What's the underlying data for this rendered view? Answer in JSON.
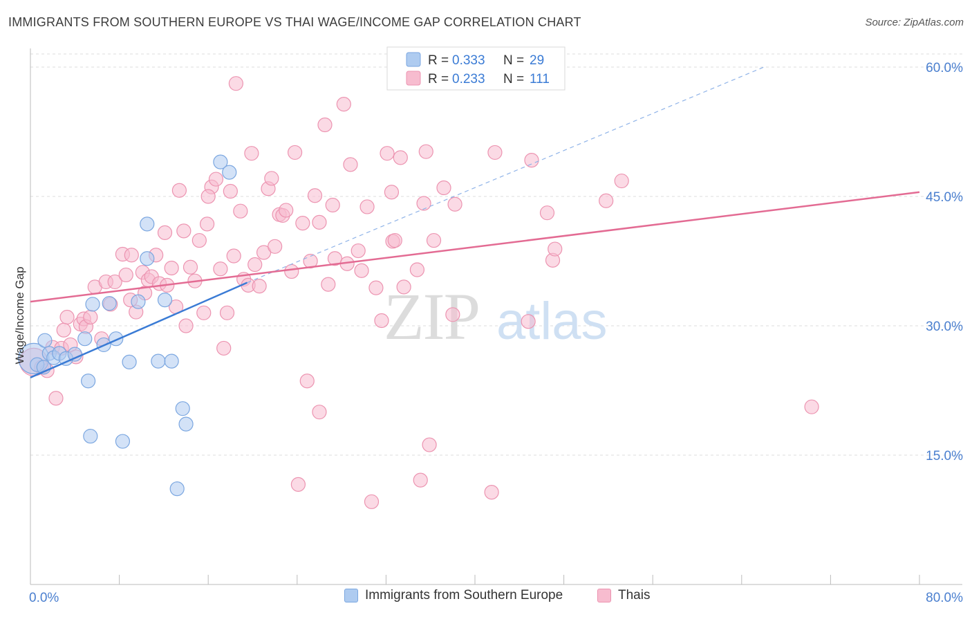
{
  "title": "IMMIGRANTS FROM SOUTHERN EUROPE VS THAI WAGE/INCOME GAP CORRELATION CHART",
  "source": "Source: ZipAtlas.com",
  "watermark": {
    "zip": "ZIP",
    "atlas": "atlas"
  },
  "colors": {
    "blue_fill": "#aecbf0",
    "blue_stroke": "#7aa6e0",
    "blue_line": "#3a7bd5",
    "pink_fill": "#f7bccf",
    "pink_stroke": "#ec93b0",
    "pink_line": "#e36b93",
    "axis_text": "#4a7fcf",
    "grid": "#dddddd"
  },
  "legend_top": [
    {
      "r_label": "R =",
      "r_value": "0.333",
      "n_label": "N =",
      "n_value": "29"
    },
    {
      "r_label": "R =",
      "r_value": "0.233",
      "n_label": "N =",
      "n_value": "111"
    }
  ],
  "chart_data": {
    "type": "scatter",
    "ylabel": "Wage/Income Gap",
    "xlim": [
      0,
      80
    ],
    "ylim": [
      0,
      62
    ],
    "x_tick_labels": [
      "0.0%",
      "80.0%"
    ],
    "y_ticks": [
      15,
      30,
      45,
      60
    ],
    "y_tick_labels": [
      "15.0%",
      "30.0%",
      "45.0%",
      "60.0%"
    ],
    "grid": true,
    "series": [
      {
        "name": "Immigrants from Southern Europe",
        "color": "#aecbf0",
        "trend": {
          "x0": 0,
          "y0": 24.0,
          "x1": 19.5,
          "y1": 35.0,
          "dash_to_x": 66,
          "dash_to_y": 60
        },
        "points": [
          [
            0.3,
            26.2,
            22
          ],
          [
            0.6,
            25.5,
            10
          ],
          [
            1.2,
            25.2,
            10
          ],
          [
            1.3,
            28.3,
            10
          ],
          [
            1.7,
            26.8,
            10
          ],
          [
            2.1,
            26.3,
            10
          ],
          [
            2.6,
            26.8,
            10
          ],
          [
            3.2,
            26.2,
            10
          ],
          [
            4.0,
            26.7,
            10
          ],
          [
            4.9,
            28.5,
            10
          ],
          [
            5.6,
            32.5,
            10
          ],
          [
            6.6,
            27.8,
            10
          ],
          [
            7.1,
            32.6,
            10
          ],
          [
            7.7,
            28.5,
            10
          ],
          [
            8.9,
            25.8,
            10
          ],
          [
            9.7,
            32.8,
            10
          ],
          [
            10.5,
            37.8,
            10
          ],
          [
            10.5,
            41.8,
            10
          ],
          [
            11.5,
            25.9,
            10
          ],
          [
            12.1,
            33.0,
            10
          ],
          [
            12.7,
            25.9,
            10
          ],
          [
            13.2,
            11.1,
            10
          ],
          [
            13.7,
            20.4,
            10
          ],
          [
            14.0,
            18.6,
            10
          ],
          [
            17.1,
            49.0,
            10
          ],
          [
            17.9,
            47.8,
            10
          ],
          [
            5.2,
            23.6,
            10
          ],
          [
            5.4,
            17.2,
            10
          ],
          [
            8.3,
            16.6,
            10
          ]
        ]
      },
      {
        "name": "Thais",
        "color": "#f7bccf",
        "trend": {
          "x0": 0,
          "y0": 32.8,
          "x1": 80,
          "y1": 45.5
        },
        "points": [
          [
            0.3,
            25.8,
            20
          ],
          [
            1.0,
            25.2,
            10
          ],
          [
            1.5,
            24.8,
            10
          ],
          [
            2.0,
            27.5,
            10
          ],
          [
            2.3,
            21.6,
            10
          ],
          [
            2.8,
            27.4,
            10
          ],
          [
            3.0,
            29.5,
            10
          ],
          [
            3.3,
            31.0,
            10
          ],
          [
            3.6,
            27.8,
            10
          ],
          [
            4.1,
            26.4,
            10
          ],
          [
            4.5,
            30.2,
            10
          ],
          [
            4.8,
            30.8,
            10
          ],
          [
            5.0,
            29.9,
            10
          ],
          [
            5.4,
            31.0,
            10
          ],
          [
            5.8,
            34.5,
            10
          ],
          [
            6.4,
            28.5,
            10
          ],
          [
            6.8,
            35.1,
            10
          ],
          [
            7.2,
            32.5,
            10
          ],
          [
            7.6,
            35.1,
            10
          ],
          [
            8.3,
            38.3,
            10
          ],
          [
            8.6,
            35.9,
            10
          ],
          [
            9.1,
            38.2,
            10
          ],
          [
            9.5,
            31.6,
            10
          ],
          [
            10.1,
            36.2,
            10
          ],
          [
            10.3,
            33.8,
            10
          ],
          [
            10.6,
            35.3,
            10
          ],
          [
            10.9,
            35.7,
            10
          ],
          [
            11.3,
            38.2,
            10
          ],
          [
            11.6,
            34.9,
            10
          ],
          [
            12.1,
            40.8,
            10
          ],
          [
            12.3,
            34.7,
            10
          ],
          [
            12.7,
            36.7,
            10
          ],
          [
            13.1,
            32.2,
            10
          ],
          [
            13.4,
            45.7,
            10
          ],
          [
            13.8,
            41.0,
            10
          ],
          [
            14.0,
            30.0,
            10
          ],
          [
            14.4,
            36.8,
            10
          ],
          [
            14.8,
            35.2,
            10
          ],
          [
            15.2,
            39.9,
            10
          ],
          [
            15.6,
            31.5,
            10
          ],
          [
            15.9,
            41.8,
            10
          ],
          [
            16.3,
            46.1,
            10
          ],
          [
            16.7,
            47.0,
            10
          ],
          [
            17.1,
            36.6,
            10
          ],
          [
            17.4,
            27.4,
            10
          ],
          [
            17.7,
            31.5,
            10
          ],
          [
            18.0,
            45.6,
            10
          ],
          [
            18.3,
            38.1,
            10
          ],
          [
            18.5,
            58.1,
            10
          ],
          [
            18.9,
            43.3,
            10
          ],
          [
            19.2,
            35.4,
            10
          ],
          [
            19.6,
            34.7,
            10
          ],
          [
            19.9,
            50.0,
            10
          ],
          [
            20.2,
            37.1,
            10
          ],
          [
            20.6,
            34.6,
            10
          ],
          [
            21.0,
            38.5,
            10
          ],
          [
            21.4,
            45.9,
            10
          ],
          [
            21.7,
            47.1,
            10
          ],
          [
            22.0,
            39.2,
            10
          ],
          [
            22.4,
            42.9,
            10
          ],
          [
            22.7,
            42.8,
            10
          ],
          [
            23.0,
            43.4,
            10
          ],
          [
            23.5,
            36.3,
            10
          ],
          [
            23.8,
            50.1,
            10
          ],
          [
            24.1,
            11.6,
            10
          ],
          [
            24.5,
            41.9,
            10
          ],
          [
            24.9,
            23.6,
            10
          ],
          [
            25.2,
            37.5,
            10
          ],
          [
            25.6,
            45.1,
            10
          ],
          [
            26.0,
            20.0,
            10
          ],
          [
            26.5,
            53.3,
            10
          ],
          [
            26.8,
            34.8,
            10
          ],
          [
            27.2,
            44.0,
            10
          ],
          [
            27.4,
            37.8,
            10
          ],
          [
            28.2,
            55.7,
            10
          ],
          [
            28.8,
            48.7,
            10
          ],
          [
            28.5,
            37.2,
            10
          ],
          [
            29.5,
            38.7,
            10
          ],
          [
            29.8,
            36.4,
            10
          ],
          [
            30.3,
            43.8,
            10
          ],
          [
            30.7,
            9.6,
            10
          ],
          [
            31.1,
            34.4,
            10
          ],
          [
            31.6,
            30.6,
            10
          ],
          [
            32.1,
            50.0,
            10
          ],
          [
            32.6,
            39.8,
            10
          ],
          [
            32.8,
            39.9,
            10
          ],
          [
            33.3,
            49.5,
            10
          ],
          [
            33.6,
            34.5,
            10
          ],
          [
            34.8,
            36.5,
            10
          ],
          [
            35.1,
            12.1,
            10
          ],
          [
            35.4,
            44.2,
            10
          ],
          [
            35.6,
            50.2,
            10
          ],
          [
            35.9,
            16.2,
            10
          ],
          [
            36.3,
            39.9,
            10
          ],
          [
            37.2,
            46.0,
            10
          ],
          [
            38.0,
            31.3,
            10
          ],
          [
            38.2,
            44.1,
            10
          ],
          [
            41.5,
            10.7,
            10
          ],
          [
            41.8,
            50.1,
            10
          ],
          [
            44.8,
            30.5,
            10
          ],
          [
            45.1,
            49.2,
            10
          ],
          [
            46.5,
            43.1,
            10
          ],
          [
            47.0,
            37.6,
            10
          ],
          [
            47.2,
            38.9,
            10
          ],
          [
            51.8,
            44.5,
            10
          ],
          [
            53.2,
            46.8,
            10
          ],
          [
            70.3,
            20.6,
            10
          ],
          [
            32.5,
            45.5,
            10
          ],
          [
            9.0,
            33.0,
            10
          ],
          [
            16.0,
            45.0,
            10
          ],
          [
            26.0,
            42.0,
            10
          ]
        ]
      }
    ]
  }
}
